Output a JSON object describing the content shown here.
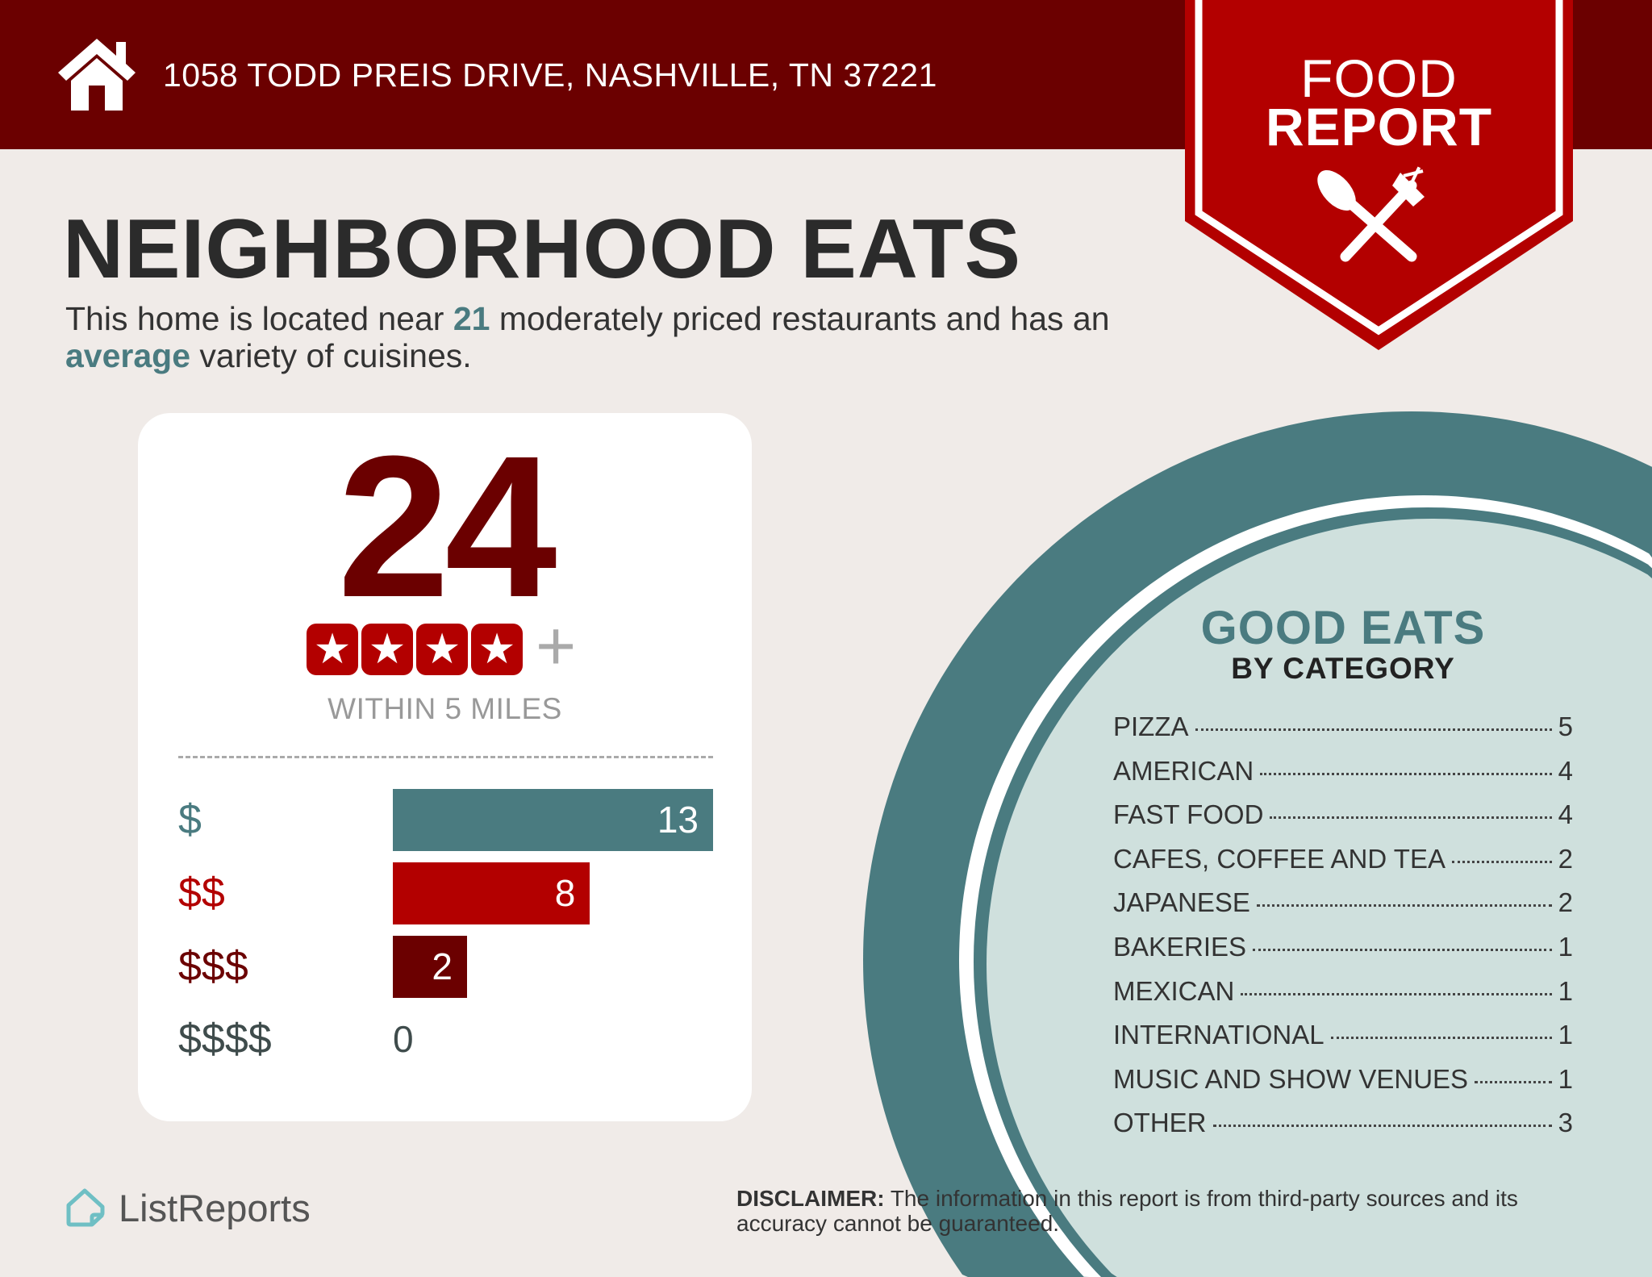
{
  "header": {
    "address": "1058 TODD PREIS DRIVE, NASHVILLE, TN 37221",
    "home_icon": "house-icon",
    "ribbon_line1": "FOOD",
    "ribbon_line2": "REPORT",
    "ribbon_icon": "spoon-fork-icon"
  },
  "main": {
    "title": "NEIGHBORHOOD EATS",
    "summary_prefix": "This home is located near ",
    "summary_count": "21",
    "summary_mid": " moderately priced restaurants and has an ",
    "summary_variety": "average",
    "summary_suffix": " variety of cuisines."
  },
  "card": {
    "total": "24",
    "star_rating": 4,
    "star_plus": "+",
    "within": "WITHIN 5 MILES",
    "price_tiers": [
      {
        "label": "$",
        "value": 13,
        "color": "#4a7b80"
      },
      {
        "label": "$$",
        "value": 8,
        "color": "#b30000"
      },
      {
        "label": "$$$",
        "value": 2,
        "color": "#6b0000"
      },
      {
        "label": "$$$$",
        "value": 0,
        "color": "#3f4c4c"
      }
    ]
  },
  "categories": {
    "title": "GOOD EATS",
    "subtitle": "BY CATEGORY",
    "items": [
      {
        "label": "PIZZA",
        "value": "5"
      },
      {
        "label": "AMERICAN",
        "value": "4"
      },
      {
        "label": "FAST FOOD",
        "value": "4"
      },
      {
        "label": "CAFES, COFFEE AND TEA",
        "value": "2"
      },
      {
        "label": "JAPANESE",
        "value": "2"
      },
      {
        "label": "BAKERIES",
        "value": "1"
      },
      {
        "label": "MEXICAN",
        "value": "1"
      },
      {
        "label": "INTERNATIONAL",
        "value": "1"
      },
      {
        "label": "MUSIC AND SHOW VENUES",
        "value": "1"
      },
      {
        "label": "OTHER",
        "value": "3"
      }
    ]
  },
  "footer": {
    "brand": "ListReports",
    "brand_icon": "listreports-house-icon",
    "disclaimer_label": "DISCLAIMER:",
    "disclaimer_text": " The information in this report is from third-party sources and its accuracy cannot be guaranteed."
  },
  "colors": {
    "header": "#6b0000",
    "ribbon": "#b30000",
    "teal": "#4a7b80",
    "plate": "#cfe0dd",
    "background": "#f0ebe8"
  }
}
